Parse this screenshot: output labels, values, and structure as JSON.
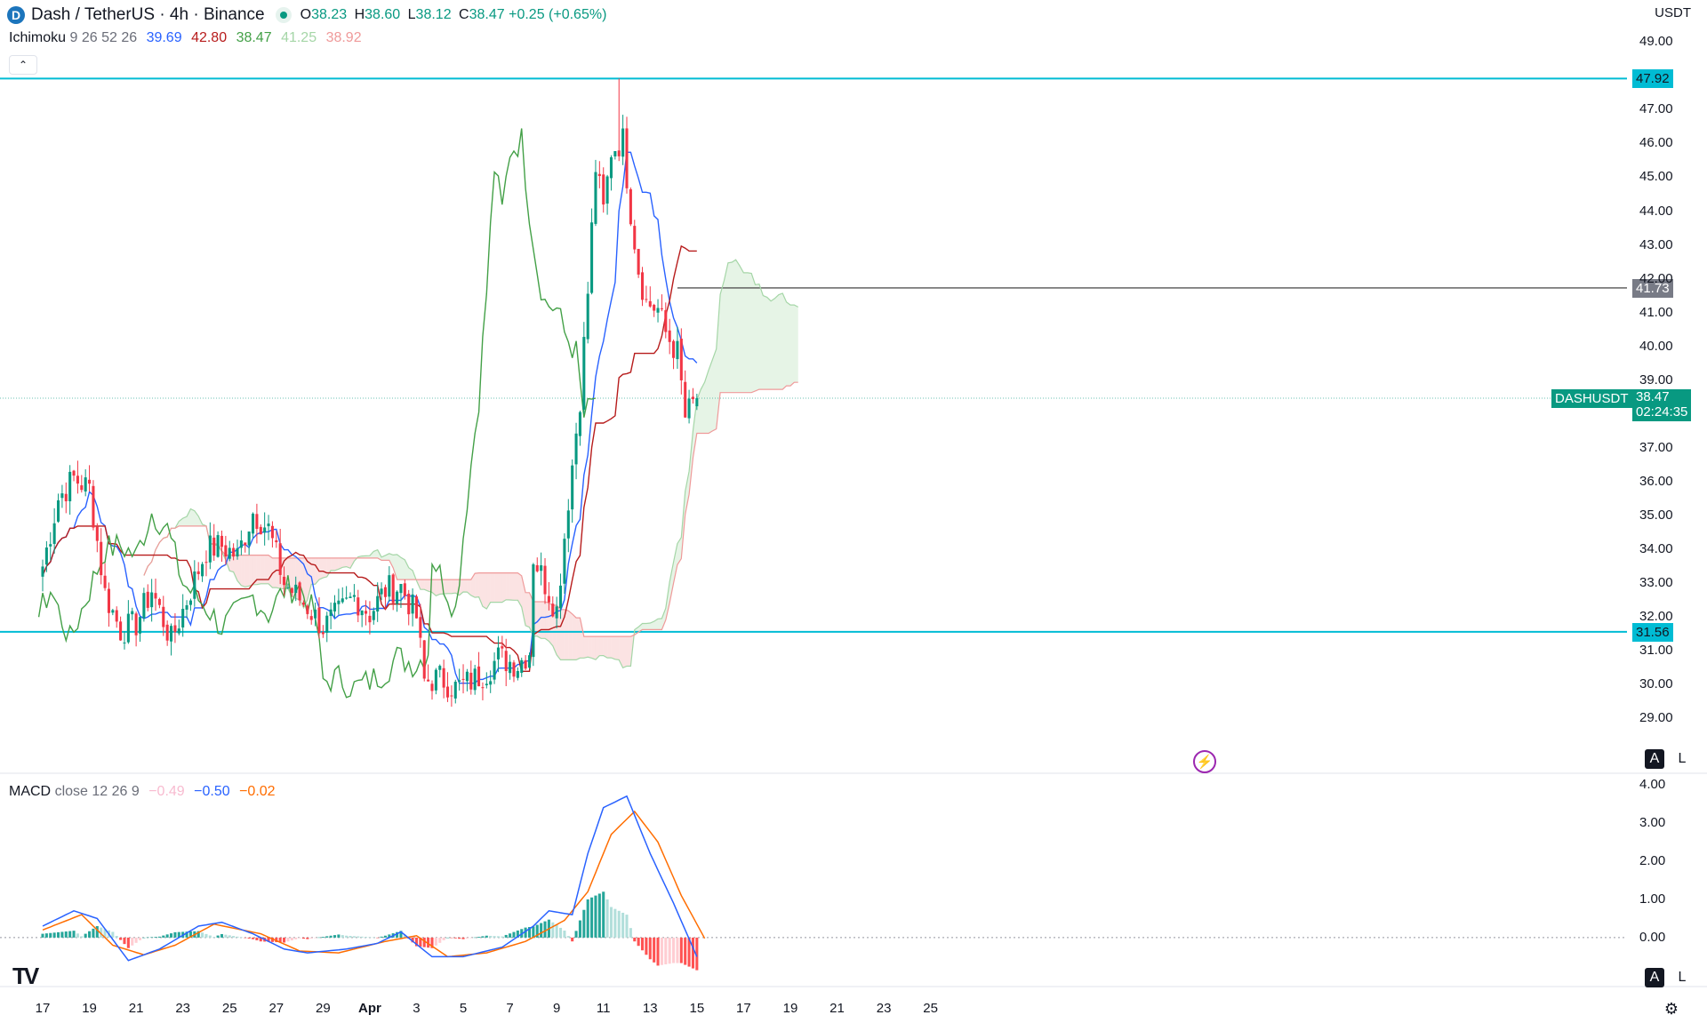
{
  "header": {
    "symbol_icon": "dash-logo-icon",
    "title": "Dash / TetherUS · 4h · Binance",
    "market_status_icon": "market-open-dot-icon",
    "ohlc": {
      "open_label": "O",
      "open": "38.23",
      "high_label": "H",
      "high": "38.60",
      "low_label": "L",
      "low": "38.12",
      "close_label": "C",
      "close": "38.47",
      "change": "+0.25 (+0.65%)"
    }
  },
  "ichimoku_legend": {
    "name": "Ichimoku",
    "params": "9 26 52 26",
    "values": [
      {
        "text": "39.69",
        "color": "#2962ff"
      },
      {
        "text": "42.80",
        "color": "#b71c1c"
      },
      {
        "text": "38.47",
        "color": "#43a047"
      },
      {
        "text": "41.25",
        "color": "#a5d6a7"
      },
      {
        "text": "38.92",
        "color": "#ef9a9a"
      }
    ]
  },
  "macd_legend": {
    "name": "MACD",
    "params": "close 12 26 9",
    "values": [
      {
        "text": "−0.49",
        "color": "#f8bbd0"
      },
      {
        "text": "−0.50",
        "color": "#2962ff"
      },
      {
        "text": "−0.02",
        "color": "#ff6d00"
      }
    ]
  },
  "currency_label": "USDT",
  "collapse_icon": "chevron-up-icon",
  "flash_icon": "lightning-icon",
  "auto_scale_label": "A",
  "log_scale_label": "L",
  "settings_icon": "gear-icon",
  "logo_text": "TV",
  "price_axis": {
    "ticks": [
      "49.00",
      "47.00",
      "46.00",
      "45.00",
      "44.00",
      "43.00",
      "42.00",
      "41.00",
      "40.00",
      "39.00",
      "37.00",
      "36.00",
      "35.00",
      "34.00",
      "33.00",
      "32.00",
      "31.00",
      "30.00",
      "29.00"
    ],
    "tick_values": [
      49,
      47,
      46,
      45,
      44,
      43,
      42,
      41,
      40,
      39,
      37,
      36,
      35,
      34,
      33,
      32,
      31,
      30,
      29
    ]
  },
  "macd_axis": {
    "ticks": [
      "4.00",
      "3.00",
      "2.00",
      "1.00",
      "0.00"
    ],
    "tick_values": [
      4,
      3,
      2,
      1,
      0
    ]
  },
  "price_tags": {
    "upper_level": {
      "text": "47.92",
      "value": 47.92,
      "color": "#00bcd4"
    },
    "resistance": {
      "text": "41.73",
      "value": 41.73,
      "color": "#787b86"
    },
    "current_symbol": "DASHUSDT",
    "current_price": "38.47",
    "current_value": 38.47,
    "countdown": "02:24:35",
    "current_color": "#089981",
    "lower_level": {
      "text": "31.56",
      "value": 31.56,
      "color": "#00bcd4"
    }
  },
  "time_axis": {
    "labels": [
      "17",
      "19",
      "21",
      "23",
      "25",
      "27",
      "29",
      "Apr",
      "3",
      "5",
      "7",
      "9",
      "11",
      "13",
      "15",
      "17",
      "19",
      "21",
      "23",
      "25"
    ],
    "label_bars": [
      0,
      12,
      24,
      36,
      48,
      60,
      72,
      84,
      96,
      108,
      120,
      132,
      144,
      156,
      168,
      180,
      192,
      204,
      216,
      228
    ]
  },
  "colors": {
    "up": "#089981",
    "down": "#f23645",
    "tenkan": "#2962ff",
    "kijun": "#b71c1c",
    "chikou": "#43a047",
    "cloud_bull": "#a5d6a7",
    "cloud_bear": "#ef9a9a",
    "macd": "#2962ff",
    "signal": "#ff6d00"
  },
  "chart_data": {
    "type": "candlestick",
    "timeframe": "4h",
    "symbol": "DASHUSDT",
    "ylim": [
      28.3,
      49.4
    ],
    "anchors": [
      {
        "bar": 0,
        "price": 33.5
      },
      {
        "bar": 4,
        "price": 35.5
      },
      {
        "bar": 8,
        "price": 36.1
      },
      {
        "bar": 12,
        "price": 35.8
      },
      {
        "bar": 16,
        "price": 32.7
      },
      {
        "bar": 20,
        "price": 31.6
      },
      {
        "bar": 24,
        "price": 31.8
      },
      {
        "bar": 28,
        "price": 32.8
      },
      {
        "bar": 33,
        "price": 31.3
      },
      {
        "bar": 38,
        "price": 32.8
      },
      {
        "bar": 42,
        "price": 34.0
      },
      {
        "bar": 46,
        "price": 34.1
      },
      {
        "bar": 50,
        "price": 33.8
      },
      {
        "bar": 54,
        "price": 35.1
      },
      {
        "bar": 58,
        "price": 34.6
      },
      {
        "bar": 62,
        "price": 33.0
      },
      {
        "bar": 68,
        "price": 32.3
      },
      {
        "bar": 72,
        "price": 31.7
      },
      {
        "bar": 76,
        "price": 32.1
      },
      {
        "bar": 80,
        "price": 32.6
      },
      {
        "bar": 84,
        "price": 32.1
      },
      {
        "bar": 88,
        "price": 32.8
      },
      {
        "bar": 92,
        "price": 32.9
      },
      {
        "bar": 96,
        "price": 32.0
      },
      {
        "bar": 98,
        "price": 30.1
      },
      {
        "bar": 102,
        "price": 30.2
      },
      {
        "bar": 106,
        "price": 29.9
      },
      {
        "bar": 110,
        "price": 30.1
      },
      {
        "bar": 114,
        "price": 30.4
      },
      {
        "bar": 117,
        "price": 30.8
      },
      {
        "bar": 122,
        "price": 30.6
      },
      {
        "bar": 125,
        "price": 31.0
      },
      {
        "bar": 126,
        "price": 33.8
      },
      {
        "bar": 129,
        "price": 33.0
      },
      {
        "bar": 132,
        "price": 32.2
      },
      {
        "bar": 135,
        "price": 35.5
      },
      {
        "bar": 138,
        "price": 38.5
      },
      {
        "bar": 140,
        "price": 41.6
      },
      {
        "bar": 142,
        "price": 45.3
      },
      {
        "bar": 144,
        "price": 44.0
      },
      {
        "bar": 146,
        "price": 45.8
      },
      {
        "bar": 149,
        "price": 46.1
      },
      {
        "bar": 151,
        "price": 44.0
      },
      {
        "bar": 153,
        "price": 42.3
      },
      {
        "bar": 155,
        "price": 41.3
      },
      {
        "bar": 158,
        "price": 41.1
      },
      {
        "bar": 160,
        "price": 40.4
      },
      {
        "bar": 163,
        "price": 39.8
      },
      {
        "bar": 165,
        "price": 37.9
      },
      {
        "bar": 168,
        "price": 38.47
      }
    ],
    "last_candle": {
      "open": 38.23,
      "high": 38.6,
      "low": 38.12,
      "close": 38.47
    },
    "recent_high": 47.92,
    "levels": [
      47.92,
      41.73,
      31.56
    ],
    "ichimoku": {
      "tenkan": 39.69,
      "kijun": 42.8,
      "chikou": 38.47,
      "senkou_a": 41.25,
      "senkou_b": 38.92
    },
    "macd": {
      "ylim": [
        -0.7,
        4.3
      ],
      "histogram": -0.49,
      "macd": -0.5,
      "signal": -0.02,
      "macd_line": [
        {
          "bar": 0,
          "v": 0.3
        },
        {
          "bar": 8,
          "v": 0.7
        },
        {
          "bar": 14,
          "v": 0.5
        },
        {
          "bar": 22,
          "v": -0.6
        },
        {
          "bar": 30,
          "v": -0.3
        },
        {
          "bar": 40,
          "v": 0.3
        },
        {
          "bar": 46,
          "v": 0.4
        },
        {
          "bar": 54,
          "v": 0.1
        },
        {
          "bar": 62,
          "v": -0.3
        },
        {
          "bar": 68,
          "v": -0.4
        },
        {
          "bar": 78,
          "v": -0.3
        },
        {
          "bar": 86,
          "v": -0.15
        },
        {
          "bar": 92,
          "v": 0.15
        },
        {
          "bar": 100,
          "v": -0.5
        },
        {
          "bar": 108,
          "v": -0.5
        },
        {
          "bar": 118,
          "v": -0.25
        },
        {
          "bar": 126,
          "v": 0.3
        },
        {
          "bar": 130,
          "v": 0.7
        },
        {
          "bar": 136,
          "v": 0.6
        },
        {
          "bar": 140,
          "v": 2.2
        },
        {
          "bar": 144,
          "v": 3.4
        },
        {
          "bar": 150,
          "v": 3.7
        },
        {
          "bar": 156,
          "v": 2.2
        },
        {
          "bar": 162,
          "v": 0.9
        },
        {
          "bar": 168,
          "v": -0.5
        }
      ],
      "signal_line": [
        {
          "bar": 0,
          "v": 0.2
        },
        {
          "bar": 10,
          "v": 0.6
        },
        {
          "bar": 18,
          "v": -0.2
        },
        {
          "bar": 26,
          "v": -0.45
        },
        {
          "bar": 34,
          "v": -0.2
        },
        {
          "bar": 44,
          "v": 0.35
        },
        {
          "bar": 56,
          "v": 0.1
        },
        {
          "bar": 66,
          "v": -0.35
        },
        {
          "bar": 76,
          "v": -0.4
        },
        {
          "bar": 88,
          "v": -0.1
        },
        {
          "bar": 96,
          "v": 0.05
        },
        {
          "bar": 104,
          "v": -0.5
        },
        {
          "bar": 114,
          "v": -0.4
        },
        {
          "bar": 124,
          "v": -0.1
        },
        {
          "bar": 134,
          "v": 0.45
        },
        {
          "bar": 140,
          "v": 1.2
        },
        {
          "bar": 146,
          "v": 2.7
        },
        {
          "bar": 152,
          "v": 3.3
        },
        {
          "bar": 158,
          "v": 2.5
        },
        {
          "bar": 164,
          "v": 1.1
        },
        {
          "bar": 170,
          "v": -0.02
        }
      ]
    }
  }
}
